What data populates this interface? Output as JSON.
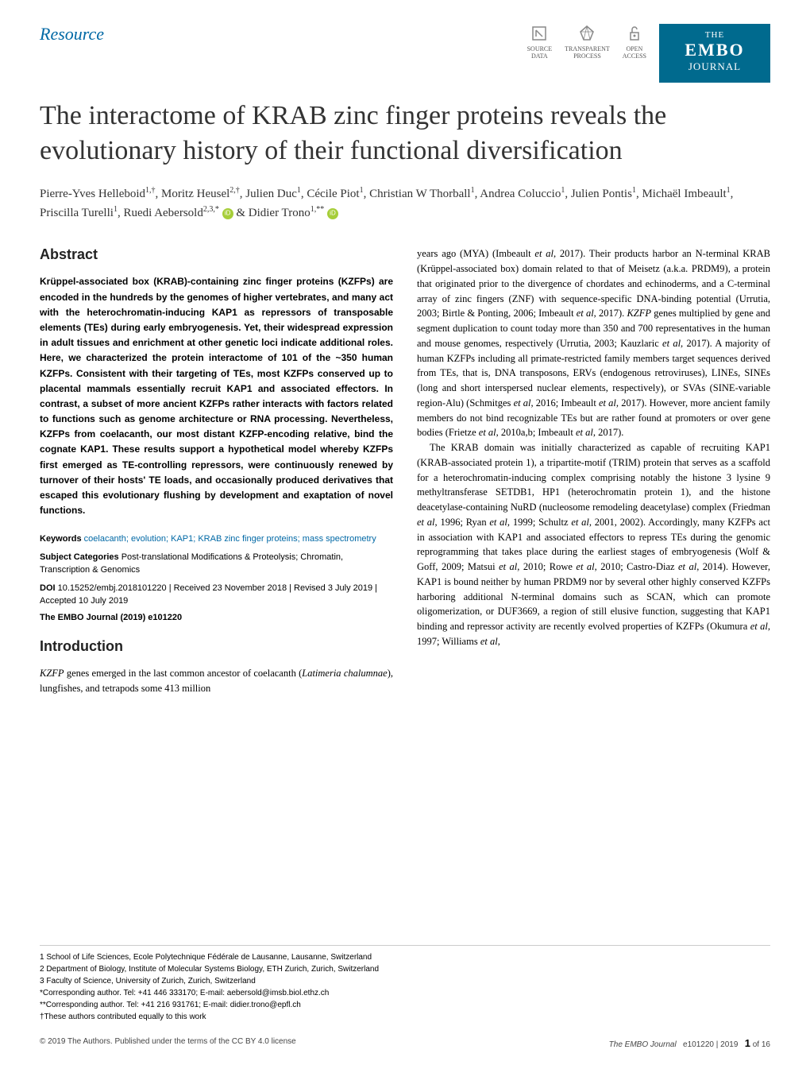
{
  "header": {
    "resource_label": "Resource",
    "badges": {
      "source_data": "SOURCE\nDATA",
      "transparent_process": "TRANSPARENT\nPROCESS",
      "open_access": "OPEN\nACCESS"
    },
    "journal": {
      "the": "THE",
      "embo": "EMBO",
      "journal": "JOURNAL"
    }
  },
  "title": "The interactome of KRAB zinc finger proteins reveals the evolutionary history of their functional diversification",
  "authors_html": "Pierre-Yves Helleboid<sup>1,†</sup>, Moritz Heusel<sup>2,†</sup>, Julien Duc<sup>1</sup>, Cécile Piot<sup>1</sup>, Christian W Thorball<sup>1</sup>, Andrea Coluccio<sup>1</sup>, Julien Pontis<sup>1</sup>, Michaël Imbeault<sup>1</sup>, Priscilla Turelli<sup>1</sup>, Ruedi Aebersold<sup>2,3,*</sup> <span class='orcid-icon'></span> & Didier Trono<sup>1,**</sup> <span class='orcid-icon'></span>",
  "abstract": {
    "heading": "Abstract",
    "text": "Krüppel-associated box (KRAB)-containing zinc finger proteins (KZFPs) are encoded in the hundreds by the genomes of higher vertebrates, and many act with the heterochromatin-inducing KAP1 as repressors of transposable elements (TEs) during early embryogenesis. Yet, their widespread expression in adult tissues and enrichment at other genetic loci indicate additional roles. Here, we characterized the protein interactome of 101 of the ~350 human KZFPs. Consistent with their targeting of TEs, most KZFPs conserved up to placental mammals essentially recruit KAP1 and associated effectors. In contrast, a subset of more ancient KZFPs rather interacts with factors related to functions such as genome architecture or RNA processing. Nevertheless, KZFPs from coelacanth, our most distant KZFP-encoding relative, bind the cognate KAP1. These results support a hypothetical model whereby KZFPs first emerged as TE-controlling repressors, were continuously renewed by turnover of their hosts' TE loads, and occasionally produced derivatives that escaped this evolutionary flushing by development and exaptation of novel functions."
  },
  "keywords": {
    "label": "Keywords",
    "text": "coelacanth; evolution; KAP1; KRAB zinc finger proteins; mass spectrometry"
  },
  "subject_categories": {
    "label": "Subject Categories",
    "text": "Post-translational Modifications & Proteolysis; Chromatin, Transcription & Genomics"
  },
  "doi": {
    "label": "DOI",
    "text": "10.15252/embj.2018101220 | Received 23 November 2018 | Revised 3 July 2019 | Accepted 10 July 2019"
  },
  "citation": "The EMBO Journal (2019) e101220",
  "introduction": {
    "heading": "Introduction",
    "para1": "<em>KZFP</em> genes emerged in the last common ancestor of coelacanth (<em>Latimeria chalumnae</em>), lungfishes, and tetrapods some 413 million"
  },
  "right_column": {
    "para1": "years ago (MYA) (Imbeault <em>et al</em>, 2017). Their products harbor an N-terminal KRAB (Krüppel-associated box) domain related to that of Meisetz (a.k.a. PRDM9), a protein that originated prior to the divergence of chordates and echinoderms, and a C-terminal array of zinc fingers (ZNF) with sequence-specific DNA-binding potential (Urrutia, 2003; Birtle & Ponting, 2006; Imbeault <em>et al</em>, 2017). <em>KZFP</em> genes multiplied by gene and segment duplication to count today more than 350 and 700 representatives in the human and mouse genomes, respectively (Urrutia, 2003; Kauzlaric <em>et al</em>, 2017). A majority of human KZFPs including all primate-restricted family members target sequences derived from TEs, that is, DNA transposons, ERVs (endogenous retroviruses), LINEs, SINEs (long and short interspersed nuclear elements, respectively), or SVAs (SINE-variable region-Alu) (Schmitges <em>et al</em>, 2016; Imbeault <em>et al</em>, 2017). However, more ancient family members do not bind recognizable TEs but are rather found at promoters or over gene bodies (Frietze <em>et al</em>, 2010a,b; Imbeault <em>et al</em>, 2017).",
    "para2": "The KRAB domain was initially characterized as capable of recruiting KAP1 (KRAB-associated protein 1), a tripartite-motif (TRIM) protein that serves as a scaffold for a heterochromatin-inducing complex comprising notably the histone 3 lysine 9 methyltransferase SETDB1, HP1 (heterochromatin protein 1), and the histone deacetylase-containing NuRD (nucleosome remodeling deacetylase) complex (Friedman <em>et al</em>, 1996; Ryan <em>et al</em>, 1999; Schultz <em>et al</em>, 2001, 2002). Accordingly, many KZFPs act in association with KAP1 and associated effectors to repress TEs during the genomic reprogramming that takes place during the earliest stages of embryogenesis (Wolf & Goff, 2009; Matsui <em>et al</em>, 2010; Rowe <em>et al</em>, 2010; Castro-Diaz <em>et al</em>, 2014). However, KAP1 is bound neither by human PRDM9 nor by several other highly conserved KZFPs harboring additional N-terminal domains such as SCAN, which can promote oligomerization, or DUF3669, a region of still elusive function, suggesting that KAP1 binding and repressor activity are recently evolved properties of KZFPs (Okumura <em>et al</em>, 1997; Williams <em>et al</em>,"
  },
  "affiliations": [
    "1   School of Life Sciences, Ecole Polytechnique Fédérale de Lausanne, Lausanne, Switzerland",
    "2   Department of Biology, Institute of Molecular Systems Biology, ETH Zurich, Zurich, Switzerland",
    "3   Faculty of Science, University of Zurich, Zurich, Switzerland",
    "    *Corresponding author. Tel: +41 446 333170; E-mail: aebersold@imsb.biol.ethz.ch",
    "    **Corresponding author. Tel: +41 216 931761; E-mail: didier.trono@epfl.ch",
    "    †These authors contributed equally to this work"
  ],
  "footer": {
    "left": "© 2019 The Authors. Published under the terms of the CC BY 4.0 license",
    "right_journal": "The EMBO Journal",
    "right_issue": "e101220 | 2019",
    "page_current": "1",
    "page_total": "of 16"
  },
  "colors": {
    "brand_blue": "#0068a5",
    "journal_bg": "#006a8e",
    "orcid_green": "#a6ce39"
  }
}
